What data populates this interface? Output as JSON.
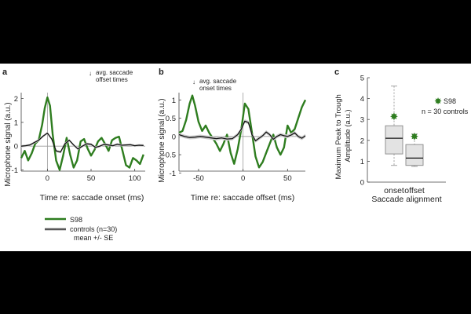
{
  "colors": {
    "subject": "#2e7d1f",
    "control": "#111111",
    "band": "#cfcfcf",
    "axis": "#444444",
    "zero": "#9a9a9a",
    "box_fill": "#e3e3e3",
    "whisker": "#9a9a9a"
  },
  "chart_data": [
    {
      "type": "line",
      "panel_label": "a",
      "xlabel": "Time re: saccade onset (ms)",
      "ylabel": "Microphone signal (a.u.)",
      "xlim": [
        -30,
        112
      ],
      "ylim": [
        -1.05,
        2.25
      ],
      "xticks": [
        0,
        50,
        100
      ],
      "yticks": [
        -1,
        0,
        1,
        2
      ],
      "annotation": "avg. saccade offset times",
      "series": [
        {
          "name": "S98",
          "x": [
            -30,
            -26,
            -22,
            -18,
            -14,
            -10,
            -6,
            -3,
            0,
            3,
            6,
            10,
            14,
            18,
            22,
            26,
            30,
            34,
            38,
            42,
            46,
            50,
            54,
            58,
            62,
            66,
            70,
            74,
            78,
            82,
            86,
            90,
            94,
            98,
            102,
            106,
            110
          ],
          "y": [
            -0.5,
            -0.2,
            -0.6,
            -0.3,
            0.1,
            0.25,
            0.9,
            1.6,
            2.05,
            1.7,
            0.5,
            -0.6,
            -1.0,
            -0.4,
            0.35,
            -0.35,
            -0.9,
            -0.6,
            0.2,
            0.3,
            -0.1,
            -0.4,
            -0.15,
            0.2,
            0.35,
            0.1,
            -0.2,
            0.25,
            0.35,
            0.4,
            -0.2,
            -0.8,
            -0.9,
            -0.5,
            -0.6,
            -0.75,
            -0.35
          ]
        },
        {
          "name": "controls (n=30)",
          "x": [
            -30,
            -25,
            -20,
            -15,
            -10,
            -5,
            0,
            5,
            10,
            15,
            20,
            25,
            30,
            35,
            40,
            45,
            50,
            55,
            60,
            65,
            70,
            75,
            80,
            85,
            90,
            95,
            100,
            105,
            110
          ],
          "y": [
            0.0,
            0.02,
            0.05,
            0.15,
            0.25,
            0.42,
            0.55,
            0.3,
            -0.2,
            -0.25,
            0.1,
            0.25,
            0.05,
            -0.12,
            0.0,
            0.1,
            0.08,
            -0.05,
            0.0,
            0.08,
            0.05,
            0.02,
            0.08,
            0.04,
            0.05,
            0.06,
            0.02,
            0.04,
            0.03
          ]
        }
      ]
    },
    {
      "type": "line",
      "panel_label": "b",
      "xlabel": "Time re: saccade offset (ms)",
      "ylabel": "Microphone signal (a.u.)",
      "xlim": [
        -72,
        70
      ],
      "ylim": [
        -0.95,
        1.2
      ],
      "xticks": [
        -50,
        0,
        50
      ],
      "yticks": [
        -1,
        -0.5,
        0,
        0.5,
        1
      ],
      "annotation": "avg. saccade onset times",
      "series": [
        {
          "name": "S98",
          "x": [
            -72,
            -68,
            -64,
            -60,
            -57,
            -54,
            -50,
            -46,
            -42,
            -38,
            -34,
            -30,
            -26,
            -22,
            -18,
            -14,
            -10,
            -6,
            -2,
            2,
            6,
            10,
            14,
            18,
            22,
            26,
            30,
            34,
            38,
            42,
            46,
            50,
            54,
            58,
            62,
            66,
            70
          ],
          "y": [
            0.1,
            0.15,
            0.45,
            0.9,
            1.12,
            0.85,
            0.4,
            0.15,
            0.3,
            0.1,
            -0.05,
            -0.2,
            -0.4,
            -0.2,
            0.05,
            -0.45,
            -0.75,
            -0.35,
            0.2,
            0.9,
            0.75,
            0.1,
            -0.55,
            -0.85,
            -0.7,
            -0.45,
            -0.2,
            0.05,
            -0.3,
            -0.5,
            -0.3,
            0.3,
            0.1,
            0.2,
            0.5,
            0.8,
            1.0
          ]
        },
        {
          "name": "controls (n=30)",
          "x": [
            -72,
            -66,
            -60,
            -54,
            -48,
            -42,
            -36,
            -30,
            -24,
            -18,
            -12,
            -6,
            -2,
            2,
            6,
            10,
            14,
            18,
            22,
            26,
            30,
            34,
            38,
            42,
            46,
            50,
            54,
            58,
            62,
            66,
            70
          ],
          "y": [
            0.05,
            0.0,
            -0.03,
            -0.02,
            0.0,
            -0.02,
            -0.04,
            -0.06,
            -0.04,
            -0.07,
            -0.06,
            0.05,
            0.2,
            0.42,
            0.38,
            0.05,
            -0.12,
            -0.05,
            0.02,
            0.12,
            0.05,
            -0.08,
            0.0,
            0.05,
            0.02,
            0.0,
            0.04,
            0.1,
            0.0,
            -0.05,
            0.02
          ]
        }
      ]
    },
    {
      "type": "box",
      "panel_label": "c",
      "xlabel": "Saccade alignment",
      "ylabel": "Maximum Peak to Trough Amplitude (a.u.)",
      "categories": [
        "onset",
        "offset"
      ],
      "ylim": [
        0,
        5
      ],
      "yticks": [
        0,
        1,
        2,
        3,
        4,
        5
      ],
      "boxes": [
        {
          "category": "onset",
          "min": 0.8,
          "q1": 1.35,
          "median": 2.1,
          "q3": 2.7,
          "max": 4.6
        },
        {
          "category": "offset",
          "min": 0.75,
          "q1": 0.8,
          "median": 1.15,
          "q3": 1.8,
          "max": 2.3
        }
      ],
      "subject_points": [
        {
          "category": "onset",
          "value": 3.15
        },
        {
          "category": "offset",
          "value": 2.2
        }
      ],
      "legend": {
        "subject": "S98",
        "controls": "n = 30 controls"
      }
    }
  ],
  "legend": {
    "subject": "S98",
    "controls": "controls (n=30)",
    "band": "mean +/- SE"
  }
}
